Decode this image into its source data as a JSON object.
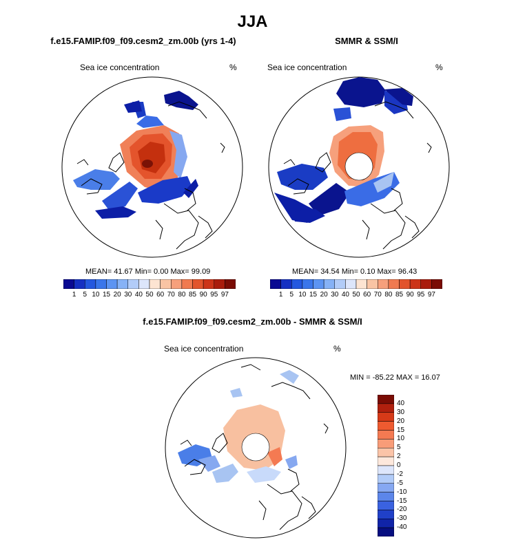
{
  "main_title": "JJA",
  "colors": {
    "deep_blue": "#08109a",
    "blue": "#2a56d8",
    "light_blue": "#a8c4f2",
    "peach": "#f7c2a2",
    "orange": "#f07442",
    "red": "#d2401a",
    "dark_red": "#8a1a0a"
  },
  "panels": [
    {
      "title": "f.e15.FAMIP.f09_f09.cesm2_zm.00b (yrs 1-4)",
      "variable": "Sea ice concentration",
      "units": "%",
      "stats": "MEAN=  41.67  Min=   0.00  Max=  99.09"
    },
    {
      "title": "SMMR & SSM/I",
      "variable": "Sea ice concentration",
      "units": "%",
      "stats": "MEAN=  34.54  Min=   0.10  Max=  96.43"
    },
    {
      "title": "f.e15.FAMIP.f09_f09.cesm2_zm.00b - SMMR & SSM/I",
      "variable": "Sea ice concentration",
      "units": "%",
      "stats": "MIN = -85.22 MAX =  16.07"
    }
  ],
  "abs_colorbar": {
    "labels": [
      "1",
      "5",
      "10",
      "15",
      "20",
      "30",
      "40",
      "50",
      "60",
      "70",
      "80",
      "85",
      "90",
      "95",
      "97"
    ],
    "colors": [
      "#0a0a92",
      "#1530c2",
      "#2458df",
      "#3a76ea",
      "#5c94f2",
      "#86b2f6",
      "#b2ccf8",
      "#dde6fb",
      "#fde4d2",
      "#f9c4a4",
      "#f6a07c",
      "#f07a50",
      "#e2542c",
      "#cc3418",
      "#a91c0c",
      "#7a0c04"
    ]
  },
  "diff_colorbar": {
    "labels": [
      "40",
      "30",
      "20",
      "15",
      "10",
      "5",
      "2",
      "0",
      "-2",
      "-5",
      "-10",
      "-15",
      "-20",
      "-30",
      "-40"
    ],
    "colors": [
      "#7a0c04",
      "#b0200e",
      "#d63a18",
      "#ee5a30",
      "#f47a52",
      "#f89c78",
      "#fbc4a8",
      "#fde8dc",
      "#dde6fb",
      "#b2ccf8",
      "#86a8f2",
      "#5c86ea",
      "#3a62e0",
      "#2040c8",
      "#1024a8",
      "#060e80"
    ]
  }
}
